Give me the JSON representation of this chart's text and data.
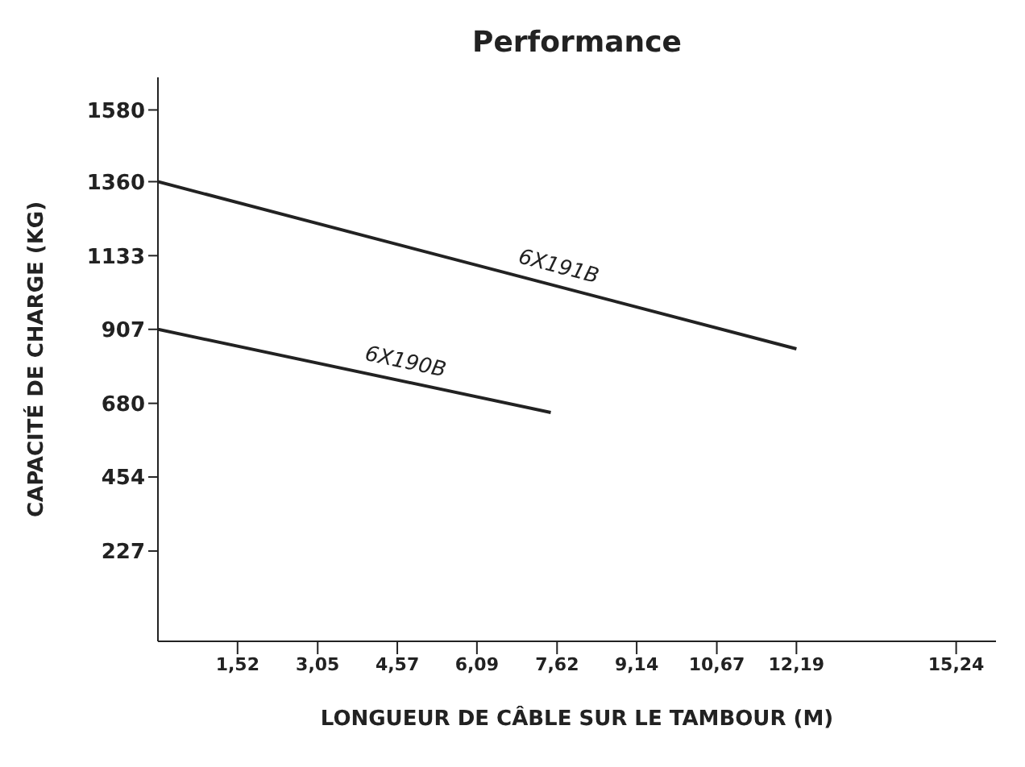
{
  "chart_data": {
    "type": "line",
    "title": "Performance",
    "xlabel": "LONGUEUR DE CÂBLE SUR LE TAMBOUR (M)",
    "ylabel": "CAPACITÉ DE CHARGE (KG)",
    "xlim": [
      0,
      16
    ],
    "xticks": [
      {
        "value": 1.52,
        "label": "1,52"
      },
      {
        "value": 3.05,
        "label": "3,05"
      },
      {
        "value": 4.57,
        "label": "4,57"
      },
      {
        "value": 6.09,
        "label": "6,09"
      },
      {
        "value": 7.62,
        "label": "7,62"
      },
      {
        "value": 9.14,
        "label": "9,14"
      },
      {
        "value": 10.67,
        "label": "10,67"
      },
      {
        "value": 12.19,
        "label": "12,19"
      },
      {
        "value": 15.24,
        "label": "15,24"
      }
    ],
    "ylim": [
      -50,
      1680
    ],
    "yticks": [
      227,
      454,
      680,
      907,
      1133,
      1360,
      1580
    ],
    "marker": "none",
    "series": [
      {
        "name": "6X191B",
        "color": "#222222",
        "x": [
          0,
          12.19
        ],
        "values": [
          1360,
          847
        ]
      },
      {
        "name": "6X190B",
        "color": "#222222",
        "x": [
          0,
          7.5
        ],
        "values": [
          907,
          652
        ]
      }
    ]
  }
}
